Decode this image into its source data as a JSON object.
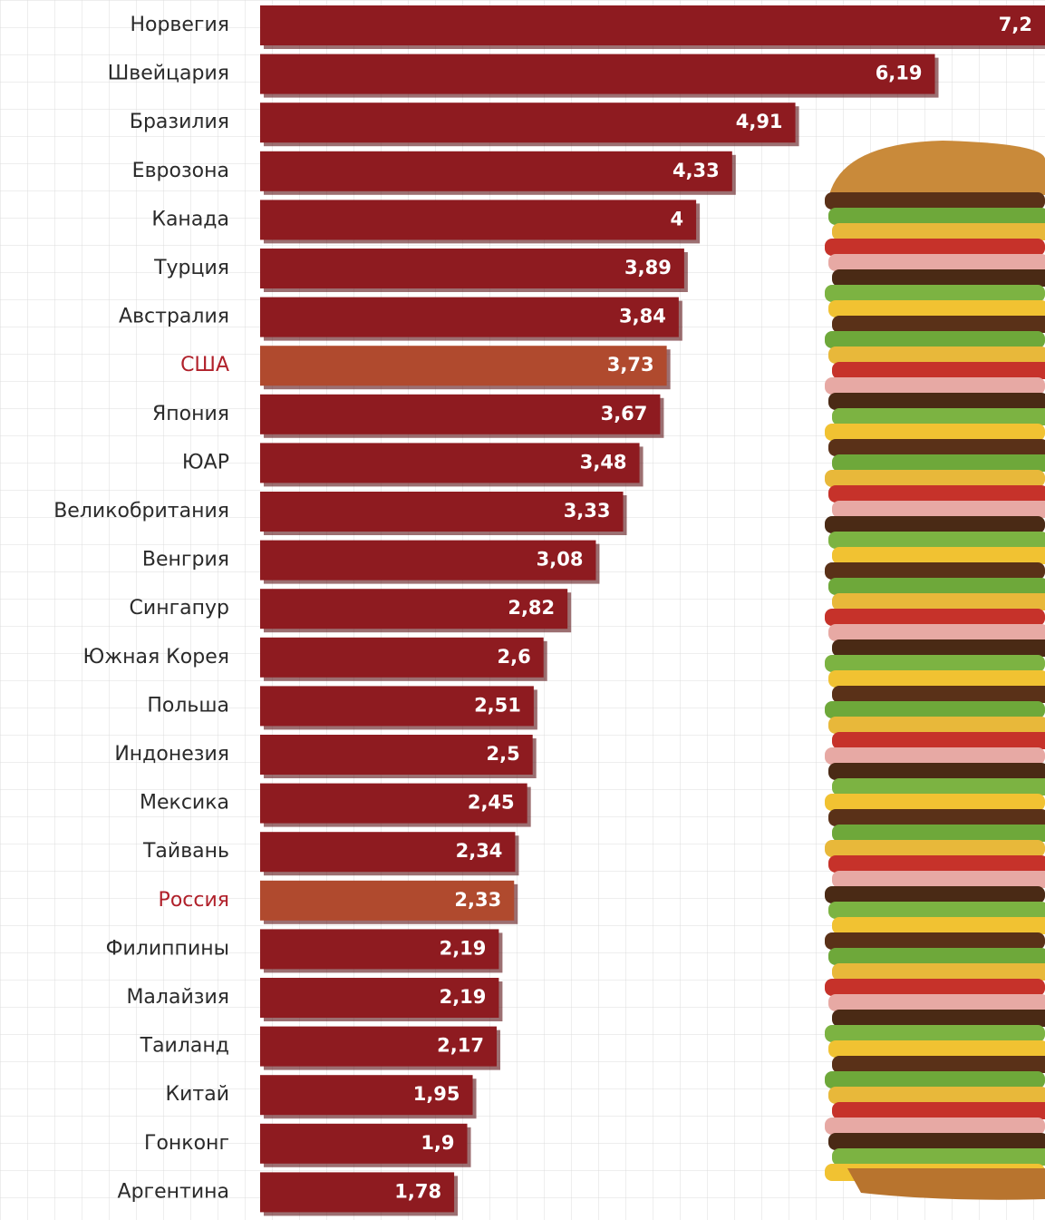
{
  "chart_data": {
    "type": "bar",
    "orientation": "horizontal",
    "categories": [
      "Норвегия",
      "Швейцария",
      "Бразилия",
      "Еврозона",
      "Канада",
      "Турция",
      "Австралия",
      "США",
      "Япония",
      "ЮАР",
      "Великобритания",
      "Венгрия",
      "Сингапур",
      "Южная Корея",
      "Польша",
      "Индонезия",
      "Мексика",
      "Тайвань",
      "Россия",
      "Филиппины",
      "Малайзия",
      "Таиланд",
      "Китай",
      "Гонконг",
      "Аргентина"
    ],
    "values": [
      7.2,
      6.19,
      4.91,
      4.33,
      4,
      3.89,
      3.84,
      3.73,
      3.67,
      3.48,
      3.33,
      3.08,
      2.82,
      2.6,
      2.51,
      2.5,
      2.45,
      2.34,
      2.33,
      2.19,
      2.19,
      2.17,
      1.95,
      1.9,
      1.78
    ],
    "value_labels": [
      "7,2",
      "6,19",
      "4,91",
      "4,33",
      "4",
      "3,89",
      "3,84",
      "3,73",
      "3,67",
      "3,48",
      "3,33",
      "3,08",
      "2,82",
      "2,6",
      "2,51",
      "2,5",
      "2,45",
      "2,34",
      "2,33",
      "2,19",
      "2,19",
      "2,17",
      "1,95",
      "1,9",
      "1,78"
    ],
    "color": "#8e1b20",
    "colors": [
      "#8e1b20",
      "#8e1b20",
      "#8e1b20",
      "#8e1b20",
      "#8e1b20",
      "#8e1b20",
      "#8e1b20",
      "#b04a2e",
      "#8e1b20",
      "#8e1b20",
      "#8e1b20",
      "#8e1b20",
      "#8e1b20",
      "#8e1b20",
      "#8e1b20",
      "#8e1b20",
      "#8e1b20",
      "#8e1b20",
      "#b04a2e",
      "#8e1b20",
      "#8e1b20",
      "#8e1b20",
      "#8e1b20",
      "#8e1b20",
      "#8e1b20"
    ],
    "xlim": [
      0,
      7.2
    ],
    "grid": true
  }
}
